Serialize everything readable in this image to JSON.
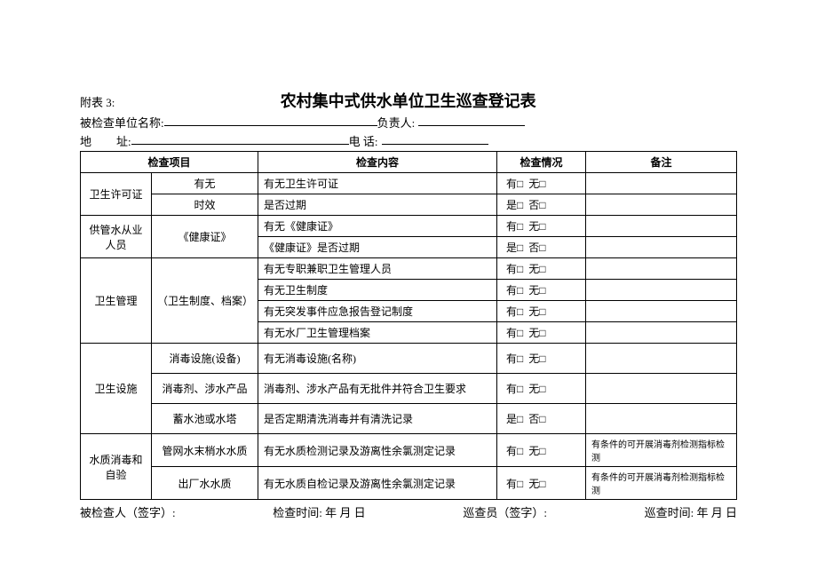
{
  "attach": "附表 3:",
  "title": "农村集中式供水单位卫生巡查登记表",
  "meta": {
    "unit_label": "被检查单位名称:",
    "person_label": "负责人:",
    "address_label": "地",
    "address_label2": "址:",
    "phone_label": "电  话:"
  },
  "headers": {
    "item": "检查项目",
    "content": "检查内容",
    "status": "检查情况",
    "note": "备注"
  },
  "yes_no": {
    "you": "有□",
    "wu": "无□",
    "shi": "是□",
    "fou": "否□"
  },
  "rows": {
    "r1_cat": "卫生许可证",
    "r1_sub1": "有无",
    "r1_sub2": "时效",
    "r1_c1": "有无卫生许可证",
    "r1_c2": "是否过期",
    "r2_cat": "供管水从业人员",
    "r2_sub": "《健康证》",
    "r2_c1": "有无《健康证》",
    "r2_c2": "《健康证》是否过期",
    "r3_cat": "卫生管理",
    "r3_sub": "（卫生制度、档案）",
    "r3_c1": "有无专职兼职卫生管理人员",
    "r3_c2": "有无卫生制度",
    "r3_c3": "有无突发事件应急报告登记制度",
    "r3_c4": "有无水厂卫生管理档案",
    "r4_cat": "卫生设施",
    "r4_sub1": "消毒设施(设备)",
    "r4_sub2": "消毒剂、涉水产品",
    "r4_sub3": "蓄水池或水塔",
    "r4_c1": "有无消毒设施(名称)",
    "r4_c2": "消毒剂、涉水产品有无批件并符合卫生要求",
    "r4_c3": "是否定期清洗消毒并有清洗记录",
    "r5_cat": "水质消毒和自验",
    "r5_sub1": "管网水末梢水水质",
    "r5_sub2": "出厂水水质",
    "r5_c1": "有无水质检测记录及游离性余氯测定记录",
    "r5_c2": "有无水质自检记录及游离性余氯测定记录",
    "r5_note": "有条件的可开展消毒剂检测指标检测"
  },
  "footer": {
    "signed": "被检查人（签字）:",
    "check_time": "检查时间:    年    月    日",
    "inspector": "巡查员（签字）:",
    "inspect_time": "巡查时间:    年    月    日"
  },
  "style": {
    "background": "#ffffff",
    "text_color": "#000000",
    "border_color": "#000000",
    "title_fontsize": 18,
    "body_fontsize": 12,
    "meta_fontsize": 13,
    "note_fontsize": 10,
    "row_padding": 3
  }
}
